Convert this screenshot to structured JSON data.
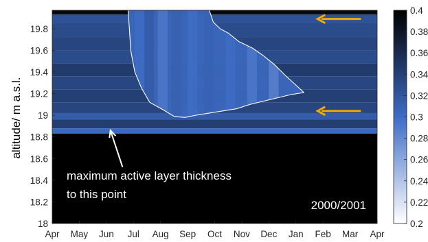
{
  "chart_data": {
    "type": "heatmap",
    "title": "",
    "season_label": "2000/2001",
    "ylabel": "altitude/ m a.s.l.",
    "xlabel": "",
    "x_ticks": [
      "Apr",
      "May",
      "Jun",
      "Jul",
      "Aug",
      "Sep",
      "Oct",
      "Nov",
      "Dec",
      "Jan",
      "Feb",
      "Mar",
      "Apr"
    ],
    "y_ticks": [
      18,
      18.2,
      18.4,
      18.6,
      18.8,
      19,
      19.2,
      19.4,
      19.6,
      19.8
    ],
    "ylim": [
      18,
      19.97
    ],
    "colorbar": {
      "ticks": [
        0.2,
        0.22,
        0.24,
        0.26,
        0.28,
        0.3,
        0.32,
        0.34,
        0.36,
        0.38,
        0.4
      ],
      "range": [
        0.2,
        0.4
      ],
      "colors": [
        "#ffffff",
        "#3e6cc6",
        "#000000"
      ]
    },
    "baseline_profile": [
      {
        "z_top": 19.97,
        "z_bottom": 19.93,
        "value": 0.392
      },
      {
        "z_top": 19.93,
        "z_bottom": 19.85,
        "value": 0.325
      },
      {
        "z_top": 19.85,
        "z_bottom": 19.72,
        "value": 0.33
      },
      {
        "z_top": 19.72,
        "z_bottom": 19.6,
        "value": 0.336
      },
      {
        "z_top": 19.6,
        "z_bottom": 19.48,
        "value": 0.33
      },
      {
        "z_top": 19.48,
        "z_bottom": 19.36,
        "value": 0.345
      },
      {
        "z_top": 19.36,
        "z_bottom": 19.24,
        "value": 0.335
      },
      {
        "z_top": 19.24,
        "z_bottom": 19.12,
        "value": 0.342
      },
      {
        "z_top": 19.12,
        "z_bottom": 19.02,
        "value": 0.336
      },
      {
        "z_top": 19.02,
        "z_bottom": 18.96,
        "value": 0.315
      },
      {
        "z_top": 18.96,
        "z_bottom": 18.88,
        "value": 0.343
      },
      {
        "z_top": 18.88,
        "z_bottom": 18.83,
        "value": 0.303
      },
      {
        "z_top": 18.83,
        "z_bottom": 18.0,
        "value": 0.4
      }
    ],
    "thaw_front": [
      {
        "month": 2.8,
        "z": 19.97
      },
      {
        "month": 2.85,
        "z": 19.8
      },
      {
        "month": 2.9,
        "z": 19.6
      },
      {
        "month": 3.05,
        "z": 19.4
      },
      {
        "month": 3.3,
        "z": 19.25
      },
      {
        "month": 3.6,
        "z": 19.12
      },
      {
        "month": 4.1,
        "z": 19.05
      },
      {
        "month": 4.5,
        "z": 18.99
      },
      {
        "month": 4.9,
        "z": 18.98
      },
      {
        "month": 5.3,
        "z": 19.0
      },
      {
        "month": 5.8,
        "z": 19.02
      },
      {
        "month": 6.3,
        "z": 19.04
      },
      {
        "month": 6.8,
        "z": 19.06
      },
      {
        "month": 7.3,
        "z": 19.1
      },
      {
        "month": 7.8,
        "z": 19.13
      },
      {
        "month": 8.3,
        "z": 19.16
      },
      {
        "month": 8.8,
        "z": 19.19
      },
      {
        "month": 9.3,
        "z": 19.21
      }
    ],
    "surface_front": [
      {
        "month": 5.8,
        "z": 19.97
      },
      {
        "month": 5.95,
        "z": 19.86
      },
      {
        "month": 6.2,
        "z": 19.8
      },
      {
        "month": 6.5,
        "z": 19.76
      },
      {
        "month": 6.9,
        "z": 19.68
      },
      {
        "month": 7.4,
        "z": 19.62
      },
      {
        "month": 7.8,
        "z": 19.55
      },
      {
        "month": 8.2,
        "z": 19.47
      },
      {
        "month": 8.6,
        "z": 19.37
      },
      {
        "month": 8.95,
        "z": 19.29
      },
      {
        "month": 9.3,
        "z": 19.21
      }
    ],
    "annotations": {
      "pointer_text": [
        "maximum active layer thickness",
        "to this point"
      ],
      "pointer_target": {
        "month": 2.15,
        "z": 18.86
      },
      "pointer_tail": {
        "month": 2.6,
        "z": 18.52
      },
      "arrows": [
        {
          "month_from": 11.4,
          "month_to": 9.8,
          "z": 19.89,
          "color": "#f2a900"
        },
        {
          "month_from": 11.4,
          "month_to": 9.8,
          "z": 19.04,
          "color": "#f2a900"
        }
      ]
    }
  }
}
